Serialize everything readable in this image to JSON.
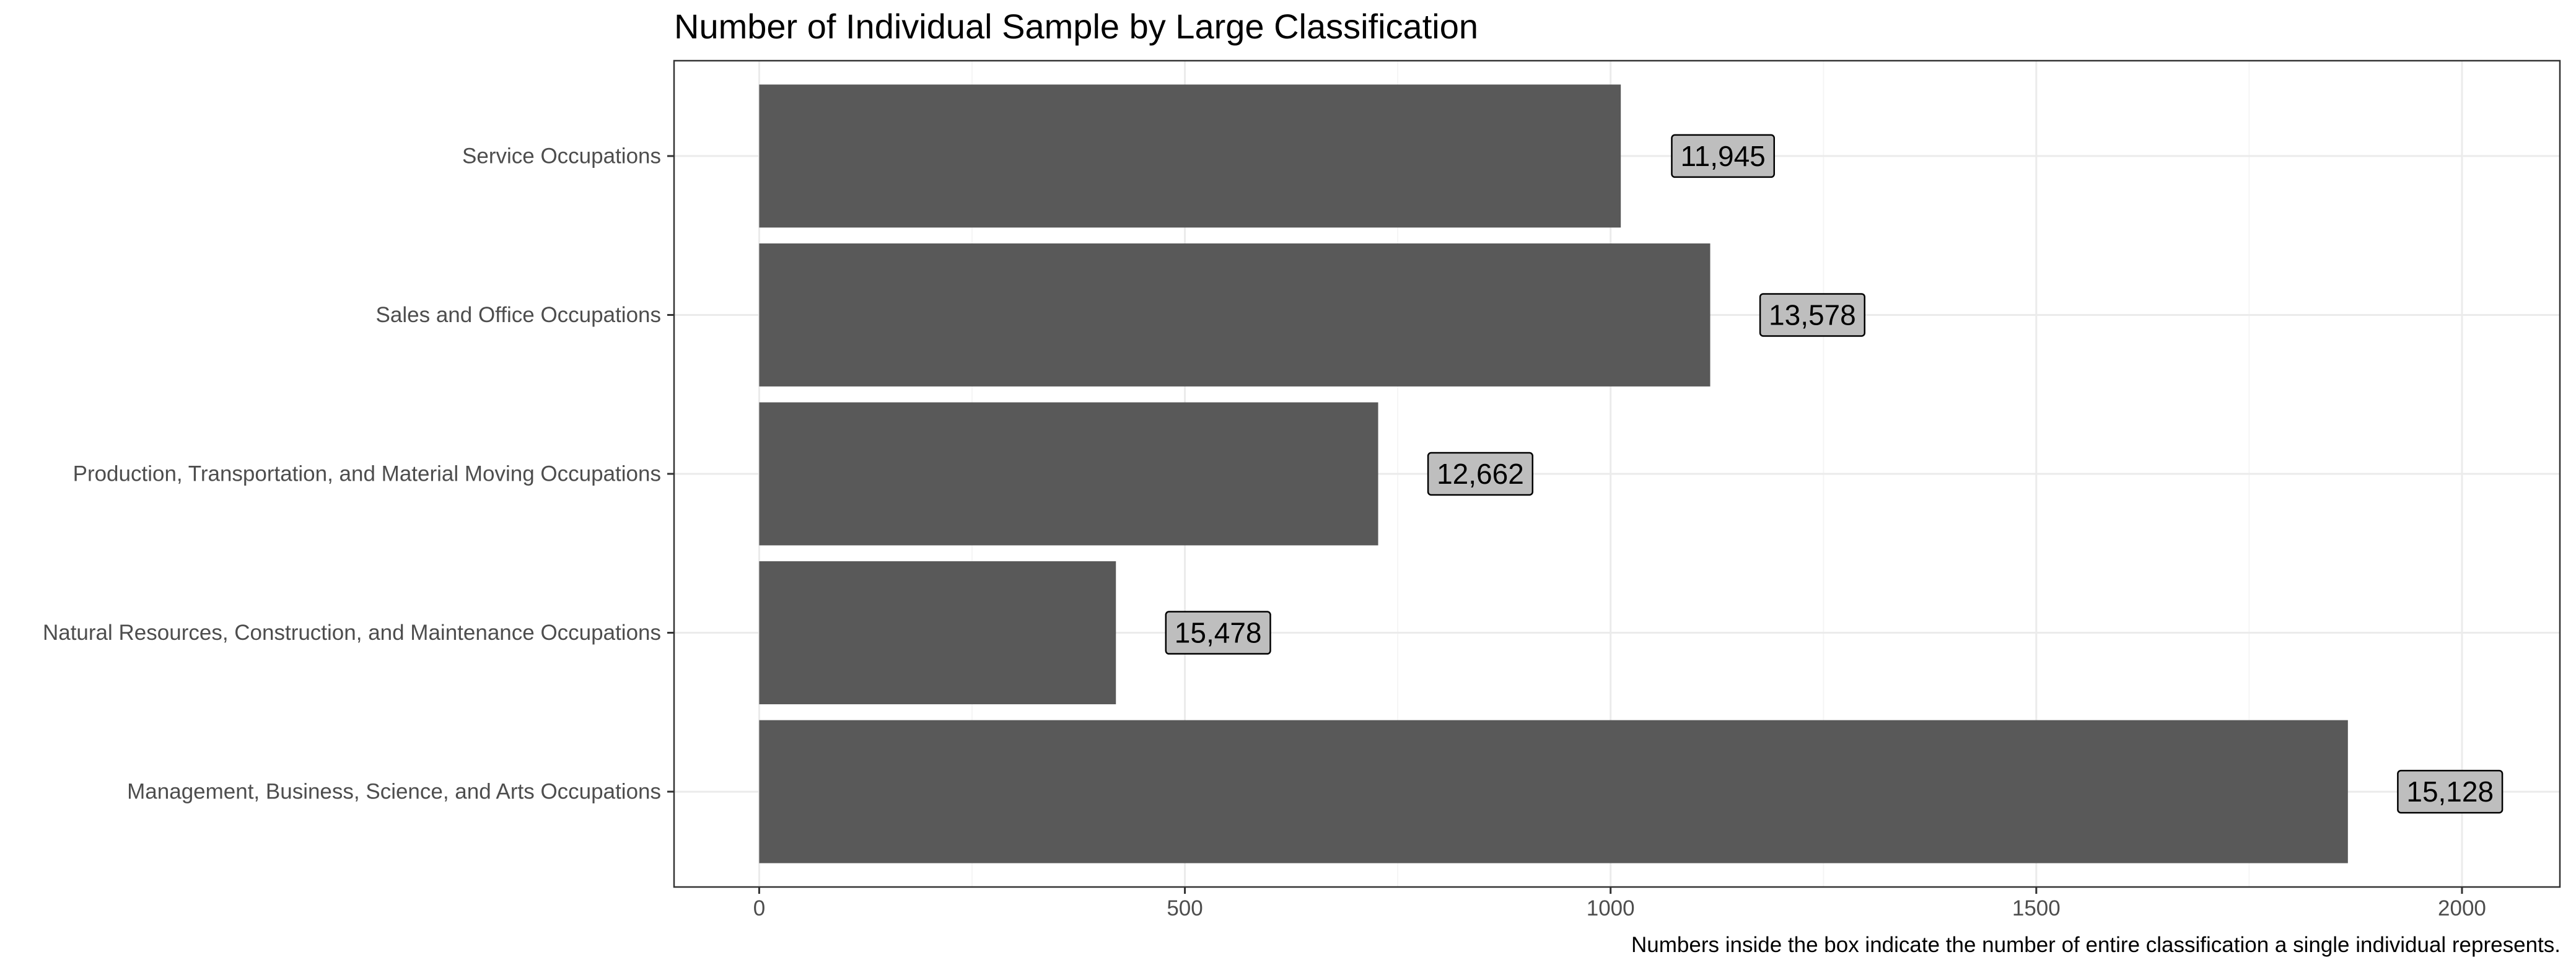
{
  "chart_data": {
    "type": "bar",
    "orientation": "horizontal",
    "title": "Number of Individual Sample by Large Classification",
    "caption": "Numbers inside the box indicate the number of entire classification a single individual represents.",
    "categories": [
      "Management,  Business, Science, and Arts Occupations",
      "Natural Resources, Construction, and Maintenance Occupations",
      "Production, Transportation, and Material Moving Occupations",
      "Sales and Office Occupations",
      "Service Occupations"
    ],
    "values": [
      1866,
      419,
      727,
      1117,
      1012
    ],
    "box_labels": [
      "15,128",
      "15,478",
      "12,662",
      "13,578",
      "11,945"
    ],
    "xlim": [
      -100,
      2115
    ],
    "xticks": [
      "0",
      "500",
      "1000",
      "1500",
      "2000"
    ],
    "xtick_values": [
      0,
      500,
      1000,
      1500,
      2000
    ],
    "grid": true,
    "colors": {
      "bar": "#595959",
      "label_fill": "#bebebe",
      "grid_major": "#ebebeb",
      "grid_minor": "#f5f5f5",
      "panel_border": "#333333"
    }
  }
}
